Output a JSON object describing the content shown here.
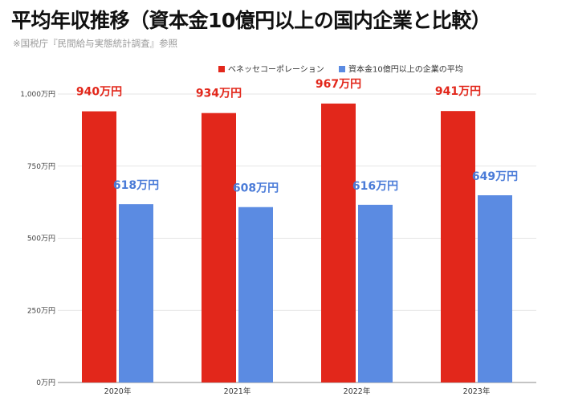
{
  "header": {
    "title": "平均年収推移（資本金10億円以上の国内企業と比較）",
    "source": "※国税庁『民間給与実態統計調査』参照"
  },
  "colors": {
    "series_a": "#e2271b",
    "series_b": "#5b8be2",
    "label_b": "#4a7bd8"
  },
  "chart_data": {
    "type": "bar",
    "categories": [
      "2020年",
      "2021年",
      "2022年",
      "2023年"
    ],
    "series": [
      {
        "name": "ベネッセコーポレーション",
        "values": [
          940,
          934,
          967,
          941
        ],
        "labels": [
          "940万円",
          "934万円",
          "967万円",
          "941万円"
        ]
      },
      {
        "name": "資本金10億円以上の企業の平均",
        "values": [
          618,
          608,
          616,
          649
        ],
        "labels": [
          "618万円",
          "608万円",
          "616万円",
          "649万円"
        ]
      }
    ],
    "ylim": [
      0,
      1000
    ],
    "yticks": [
      0,
      250,
      500,
      750,
      1000
    ],
    "ytick_labels": [
      "0万円",
      "250万円",
      "500万円",
      "750万円",
      "1,000万円"
    ],
    "xlabel": "",
    "ylabel": "",
    "grid": true,
    "legend": "top-right"
  }
}
